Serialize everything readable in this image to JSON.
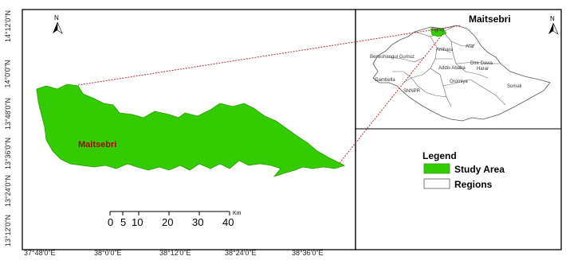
{
  "main_map": {
    "place_label": "Maitsebri",
    "north": "N",
    "lat_labels": [
      "14°12'0\"N",
      "14°0'0\"N",
      "13°48'0\"N",
      "13°36'0\"N",
      "13°24'0\"N",
      "13°12'0\"N"
    ],
    "lon_labels": [
      "37°48'0\"E",
      "38°0'0\"E",
      "38°12'0\"E",
      "38°24'0\"E",
      "38°36'0\"E"
    ],
    "scale_bar": {
      "unit": "Km",
      "ticks": [
        "0",
        "5",
        "10",
        "20",
        "30",
        "40"
      ]
    }
  },
  "inset_map": {
    "title": "Maitsebri",
    "north": "N",
    "regions": [
      "Tigray",
      "Afar",
      "Amhara",
      "Beneshangul Gumuz",
      "Dire Dawa",
      "Harar",
      "Addis Ababa",
      "Gambella",
      "Oromiya",
      "Somali",
      "SNNPR"
    ]
  },
  "legend": {
    "title": "Legend",
    "items": [
      {
        "label": "Study Area",
        "color": "#33cc00"
      },
      {
        "label": "Regions",
        "color": "#ffffff"
      }
    ]
  },
  "colors": {
    "study_area": "#33cc00",
    "label_red": "#b00000",
    "connector": "#b03030"
  }
}
